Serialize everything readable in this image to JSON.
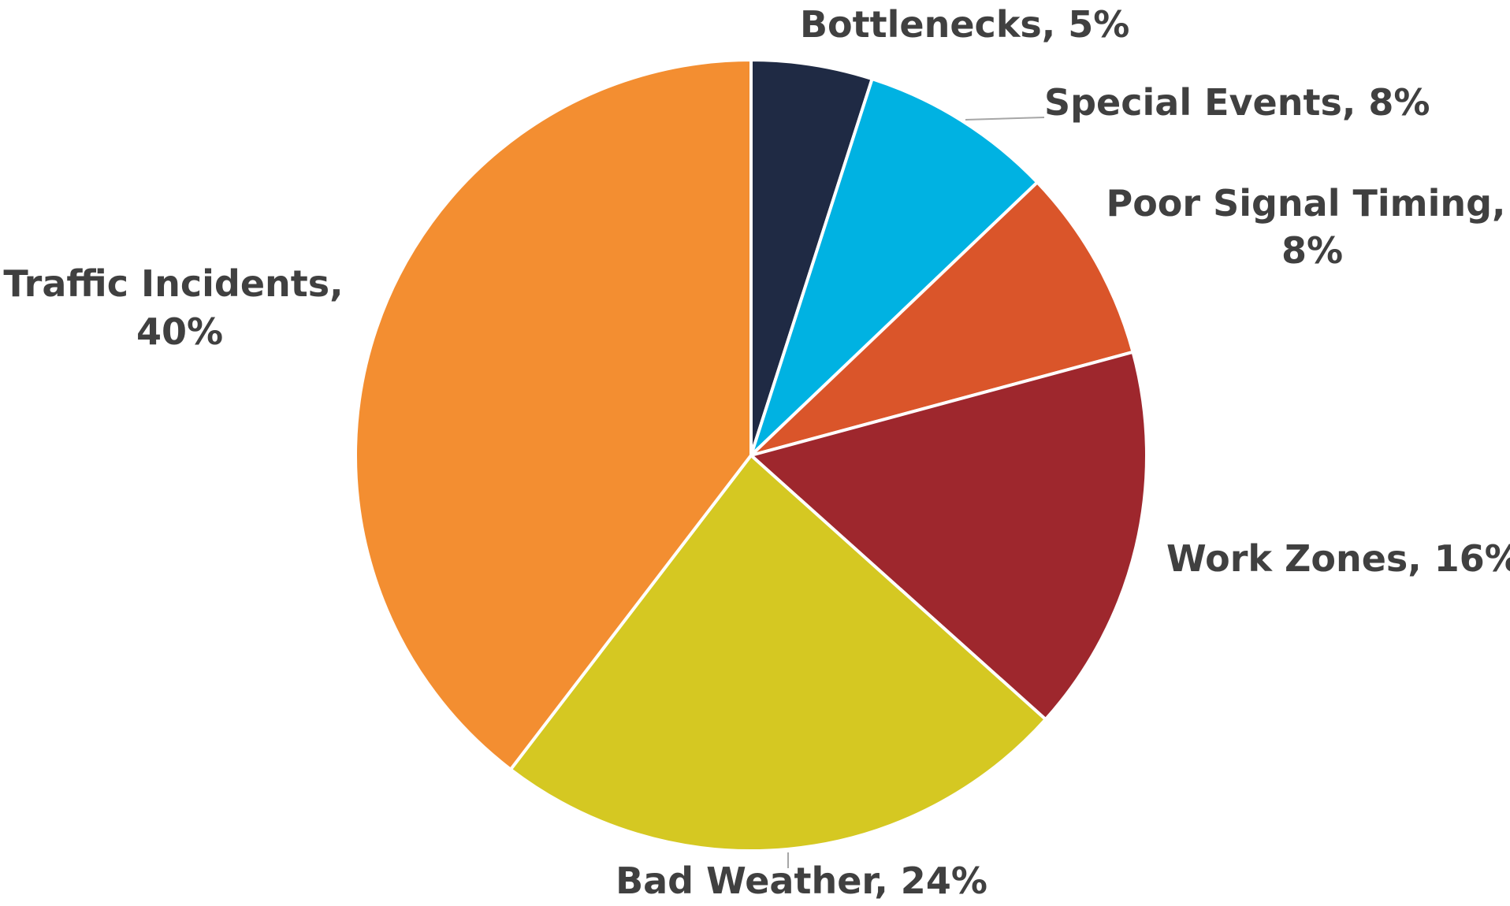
{
  "chart_data": {
    "type": "pie",
    "title": "",
    "start_angle_deg": 0,
    "direction": "clockwise",
    "legend": "none",
    "slices": [
      {
        "name": "Bottlenecks",
        "value": 5,
        "color": "#1f2a44",
        "label_lines": [
          "Bottlenecks, 5%"
        ]
      },
      {
        "name": "Special Events",
        "value": 8,
        "color": "#00b2e2",
        "label_lines": [
          "Special Events, 8%"
        ]
      },
      {
        "name": "Poor Signal Timing",
        "value": 8,
        "color": "#da552a",
        "label_lines": [
          "Poor Signal Timing,",
          "8%"
        ]
      },
      {
        "name": "Work Zones",
        "value": 16,
        "color": "#9e272d",
        "label_lines": [
          "Work Zones, 16%"
        ]
      },
      {
        "name": "Bad Weather",
        "value": 24,
        "color": "#d5c822",
        "label_lines": [
          "Bad Weather, 24%"
        ]
      },
      {
        "name": "Traffic Incidents",
        "value": 40,
        "color": "#f38e31",
        "label_lines": [
          "Traffic Incidents,",
          "40%"
        ]
      }
    ]
  }
}
